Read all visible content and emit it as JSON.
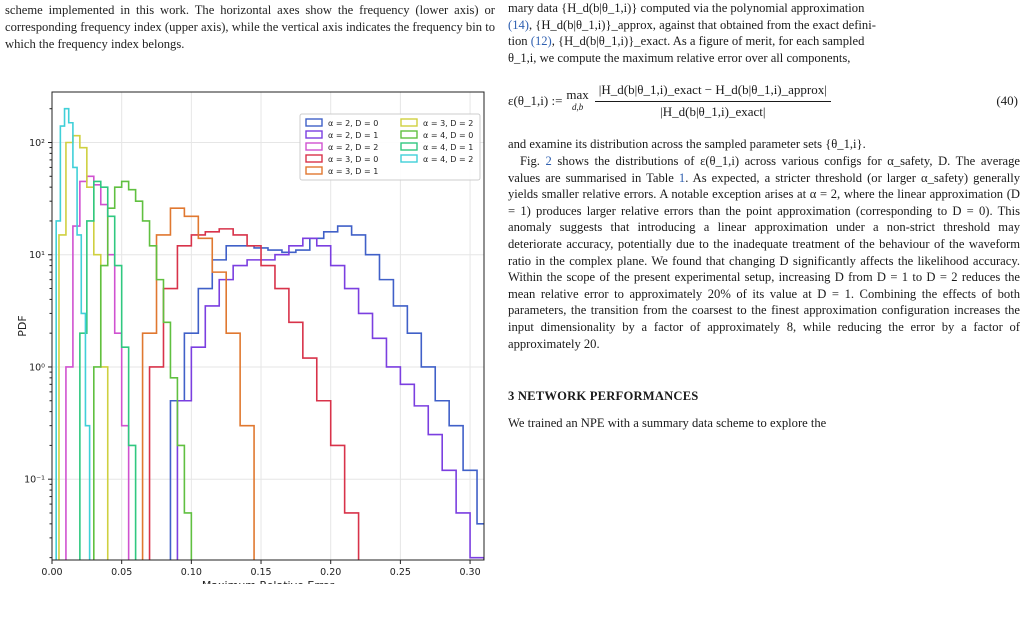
{
  "caption_tail": "scheme implemented in this work. The horizontal axes show the frequency (lower axis) or corresponding frequency index (upper axis), while the vertical axis indicates the frequency bin to which the frequency index belongs.",
  "right_column": {
    "line1": "mary data {H_d(b|θ_1,i)} computed via the polynomial approximation",
    "line2_ref": "(14)",
    "line2": ", {H_d(b|θ_1,i)}_approx, against that obtained from the exact defini-",
    "line3_a": "tion ",
    "line3_ref": "(12)",
    "line3_b": ", {H_d(b|θ_1,i)}_exact. As a figure of merit, for each sampled",
    "line4": "θ_1,i, we compute the maximum relative error over all components,",
    "equation_lhs": "ε(θ_1,i) :=",
    "equation_max": "max",
    "equation_max_sub": "d,b",
    "equation_num": "|H_d(b|θ_1,i)_exact − H_d(b|θ_1,i)_approx|",
    "equation_den": "|H_d(b|θ_1,i)_exact|",
    "equation_number": "(40)",
    "para1": "and examine its distribution across the sampled parameter sets {θ_1,i}.",
    "para2_pre": "Fig. ",
    "para2_ref1": "2",
    "para2_a": " shows the distributions of ε(θ_1,i) across various configs for α_safety, D. The average values are summarised in Table ",
    "para2_ref2": "1",
    "para2_b": ". As expected, a stricter threshold (or larger α_safety) generally yields smaller relative errors. A notable exception arises at α = 2, where the linear approximation (D = 1) produces larger relative errors than the point approximation (corresponding to D = 0). This anomaly suggests that introducing a linear approximation under a non-strict threshold may deteriorate accuracy, potentially due to the inadequate treatment of the behaviour of the waveform ratio in the complex plane. We found that changing D significantly affects the likelihood accuracy. Within the scope of the present experimental setup, increasing D from D = 1 to D = 2 reduces the mean relative error to approximately 20% of its value at D = 1. Combining the effects of both parameters, the transition from the coarsest to the finest approximation configuration increases the input dimensionality by a factor of approximately 8, while reducing the error by a factor of approximately 20.",
    "section_heading": "3 NETWORK PERFORMANCES",
    "section_line": "We trained an NPE with a summary data scheme to explore the"
  },
  "chart_data": {
    "type": "histogram",
    "xlabel": "Maximum Relative Error",
    "ylabel": "PDF",
    "xlim": [
      0.0,
      0.31
    ],
    "ylim_log10": [
      -1.72,
      2.45
    ],
    "yscale": "log",
    "grid": true,
    "legend_placement": "top-right",
    "x_ticks": [
      "0.00",
      "0.05",
      "0.10",
      "0.15",
      "0.20",
      "0.25",
      "0.30"
    ],
    "y_ticks": [
      "10⁻¹",
      "10⁰",
      "10¹",
      "10²"
    ],
    "series": [
      {
        "name": "α = 2, D = 0",
        "color": "#4060c8",
        "edges": [
          0.085,
          0.095,
          0.105,
          0.115,
          0.125,
          0.135,
          0.145,
          0.155,
          0.165,
          0.175,
          0.185,
          0.195,
          0.205,
          0.215,
          0.225,
          0.235,
          0.245,
          0.255,
          0.265,
          0.275,
          0.285,
          0.295,
          0.305,
          0.315
        ],
        "density": [
          0.5,
          2,
          5,
          9,
          12,
          12,
          11.5,
          11,
          10.5,
          11,
          14,
          16,
          18,
          15,
          10,
          6,
          3.5,
          2,
          1.0,
          0.5,
          0.3,
          0.12,
          0.04
        ]
      },
      {
        "name": "α = 2, D = 1",
        "color": "#7b3fe0",
        "edges": [
          0.09,
          0.1,
          0.11,
          0.12,
          0.13,
          0.14,
          0.15,
          0.16,
          0.17,
          0.18,
          0.19,
          0.2,
          0.21,
          0.22,
          0.23,
          0.24,
          0.25,
          0.26,
          0.27,
          0.28,
          0.29,
          0.3,
          0.31
        ],
        "density": [
          0.5,
          1.5,
          3.5,
          6,
          8,
          9,
          9,
          10,
          12,
          14,
          12,
          8,
          5,
          3,
          1.8,
          1.0,
          0.7,
          0.45,
          0.25,
          0.12,
          0.05,
          0.02
        ]
      },
      {
        "name": "α = 2, D = 2",
        "color": "#d052d0",
        "edges": [
          0.01,
          0.015,
          0.02,
          0.025,
          0.03,
          0.035,
          0.04,
          0.045,
          0.05,
          0.055
        ],
        "density": [
          1,
          18,
          45,
          50,
          42,
          28,
          10,
          2,
          0.3
        ]
      },
      {
        "name": "α = 3, D = 0",
        "color": "#d8334a",
        "edges": [
          0.07,
          0.08,
          0.09,
          0.1,
          0.11,
          0.12,
          0.13,
          0.14,
          0.15,
          0.16,
          0.17,
          0.18,
          0.19,
          0.2,
          0.21,
          0.22
        ],
        "density": [
          1,
          5,
          12,
          15,
          16,
          17,
          15,
          12,
          8,
          5,
          2.5,
          1.2,
          0.5,
          0.2,
          0.05
        ]
      },
      {
        "name": "α = 3, D = 1",
        "color": "#e07830",
        "edges": [
          0.065,
          0.075,
          0.085,
          0.095,
          0.105,
          0.115,
          0.125,
          0.135,
          0.145
        ],
        "density": [
          2,
          15,
          26,
          22,
          14,
          7,
          2,
          0.3
        ]
      },
      {
        "name": "α = 3, D = 2",
        "color": "#cfd040",
        "edges": [
          0.005,
          0.01,
          0.015,
          0.02,
          0.025,
          0.03,
          0.035,
          0.04
        ],
        "density": [
          15,
          100,
          115,
          90,
          40,
          10,
          1
        ]
      },
      {
        "name": "α = 4, D = 0",
        "color": "#60c040",
        "edges": [
          0.03,
          0.035,
          0.04,
          0.045,
          0.05,
          0.055,
          0.06,
          0.065,
          0.07,
          0.075,
          0.08,
          0.085,
          0.09,
          0.095,
          0.1
        ],
        "density": [
          1,
          8,
          26,
          40,
          45,
          38,
          30,
          20,
          12,
          6,
          2.5,
          0.8,
          0.2,
          0.05
        ]
      },
      {
        "name": "α = 4, D = 1",
        "color": "#30c880",
        "edges": [
          0.02,
          0.025,
          0.03,
          0.035,
          0.04,
          0.045,
          0.05,
          0.055,
          0.06
        ],
        "density": [
          2,
          20,
          45,
          40,
          22,
          8,
          1.5,
          0.2
        ]
      },
      {
        "name": "α = 4, D = 2",
        "color": "#40d0d8",
        "edges": [
          0.003,
          0.006,
          0.009,
          0.012,
          0.015,
          0.018,
          0.021,
          0.024,
          0.027
        ],
        "density": [
          20,
          140,
          200,
          150,
          60,
          15,
          3,
          0.3
        ]
      }
    ]
  }
}
